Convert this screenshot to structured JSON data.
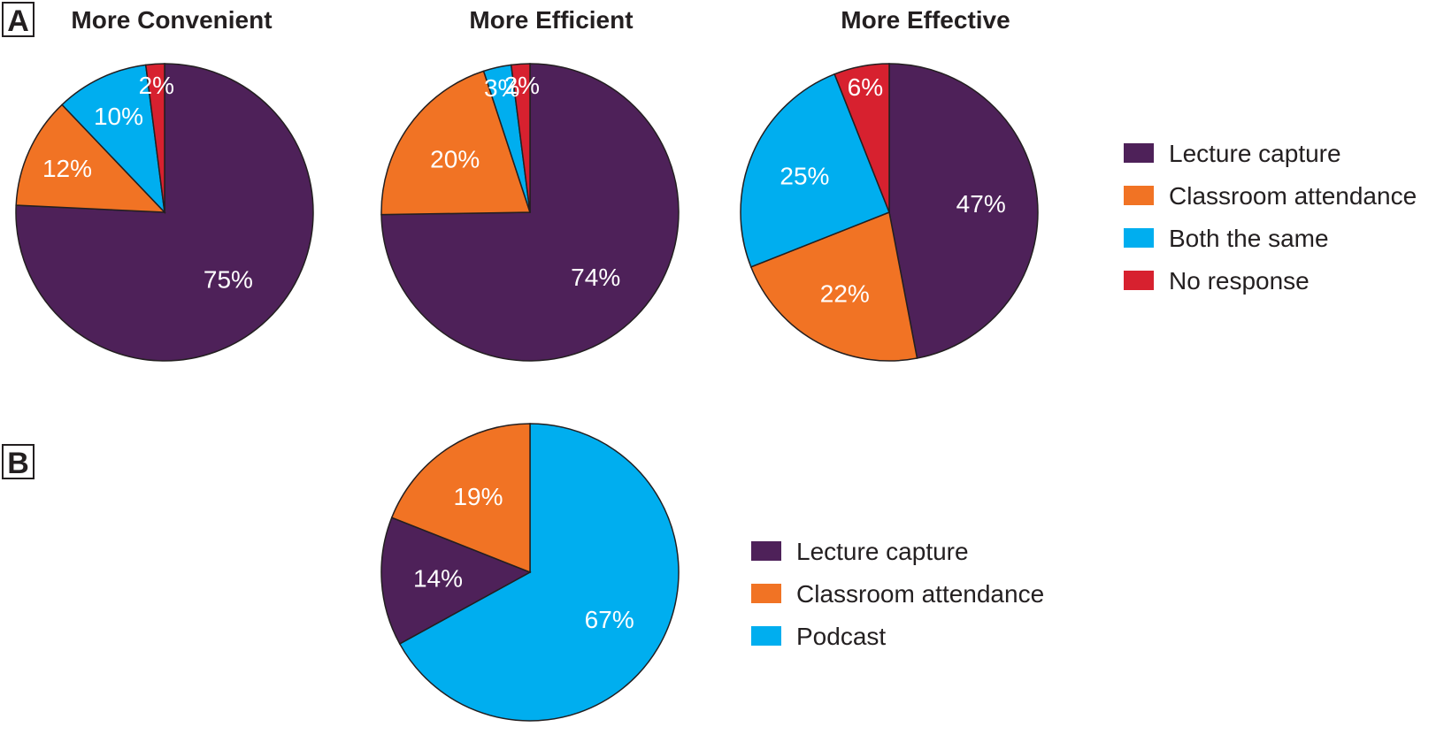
{
  "panels": [
    {
      "label": "A"
    },
    {
      "label": "B"
    }
  ],
  "colors": {
    "lecture_capture": "#4e2159",
    "classroom_attendance": "#f17324",
    "both_same": "#00aeef",
    "no_response": "#d7212f",
    "podcast": "#00aeef"
  },
  "legend_a": [
    {
      "label": "Lecture capture",
      "color": "#4e2159"
    },
    {
      "label": "Classroom attendance",
      "color": "#f17324"
    },
    {
      "label": "Both the same",
      "color": "#00aeef"
    },
    {
      "label": "No response",
      "color": "#d7212f"
    }
  ],
  "legend_b": [
    {
      "label": "Lecture capture",
      "color": "#4e2159"
    },
    {
      "label": "Classroom attendance",
      "color": "#f17324"
    },
    {
      "label": "Podcast",
      "color": "#00aeef"
    }
  ],
  "chart_data": [
    {
      "type": "pie",
      "panel": "A",
      "title": "More Convenient",
      "slices": [
        {
          "category": "Lecture capture",
          "value": 75,
          "label": "75%",
          "color": "#4e2159"
        },
        {
          "category": "Classroom attendance",
          "value": 12,
          "label": "12%",
          "color": "#f17324"
        },
        {
          "category": "Both the same",
          "value": 10,
          "label": "10%",
          "color": "#00aeef"
        },
        {
          "category": "No response",
          "value": 2,
          "label": "2%",
          "color": "#d7212f"
        }
      ]
    },
    {
      "type": "pie",
      "panel": "A",
      "title": "More Efficient",
      "slices": [
        {
          "category": "Lecture capture",
          "value": 74,
          "label": "74%",
          "color": "#4e2159"
        },
        {
          "category": "Classroom attendance",
          "value": 20,
          "label": "20%",
          "color": "#f17324"
        },
        {
          "category": "Both the same",
          "value": 3,
          "label": "3%",
          "color": "#00aeef"
        },
        {
          "category": "No response",
          "value": 2,
          "label": "2%",
          "color": "#d7212f"
        }
      ]
    },
    {
      "type": "pie",
      "panel": "A",
      "title": "More Effective",
      "slices": [
        {
          "category": "Lecture capture",
          "value": 47,
          "label": "47%",
          "color": "#4e2159"
        },
        {
          "category": "Classroom attendance",
          "value": 22,
          "label": "22%",
          "color": "#f17324"
        },
        {
          "category": "Both the same",
          "value": 25,
          "label": "25%",
          "color": "#00aeef"
        },
        {
          "category": "No response",
          "value": 6,
          "label": "6%",
          "color": "#d7212f"
        }
      ]
    },
    {
      "type": "pie",
      "panel": "B",
      "title": "",
      "slices": [
        {
          "category": "Podcast",
          "value": 67,
          "label": "67%",
          "color": "#00aeef"
        },
        {
          "category": "Lecture capture",
          "value": 14,
          "label": "14%",
          "color": "#4e2159"
        },
        {
          "category": "Classroom attendance",
          "value": 19,
          "label": "19%",
          "color": "#f17324"
        }
      ]
    }
  ]
}
